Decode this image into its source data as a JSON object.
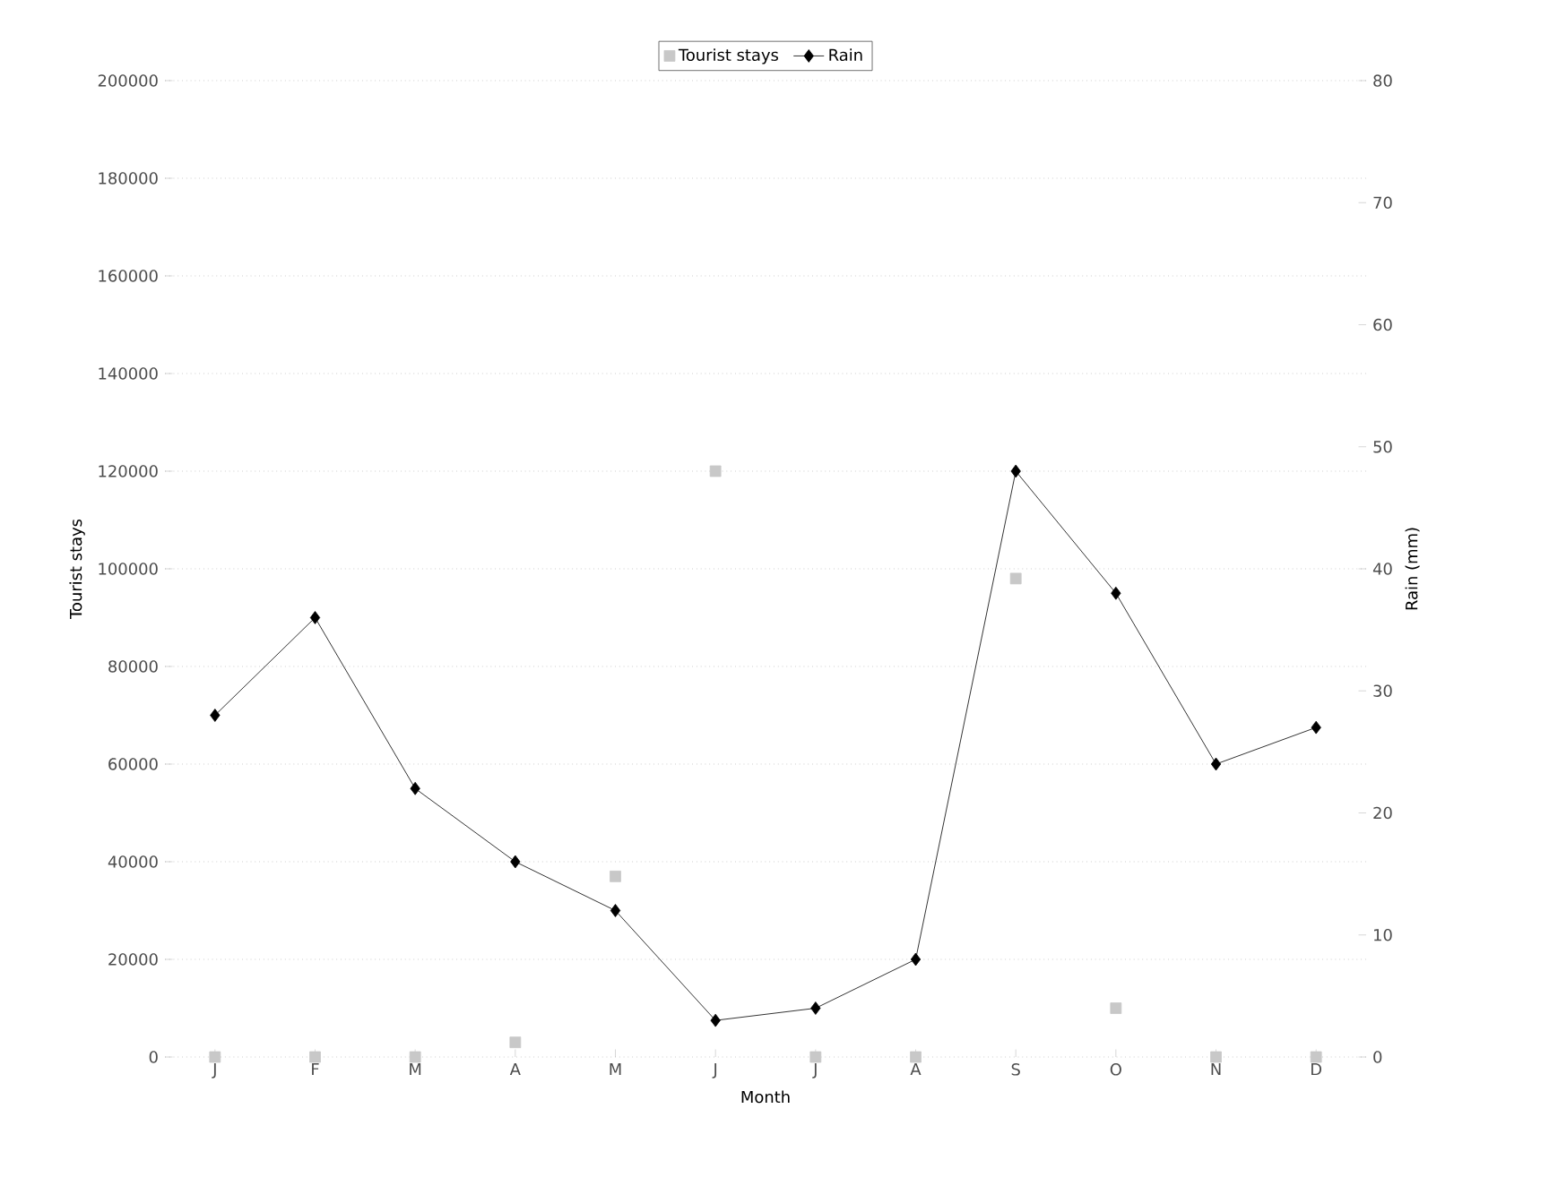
{
  "chart_data": {
    "type": "line",
    "xlabel": "Month",
    "ylabel": "Tourist stays",
    "y2label": "Rain (mm)",
    "categories": [
      "J",
      "F",
      "M",
      "A",
      "M",
      "J",
      "J",
      "A",
      "S",
      "O",
      "N",
      "D"
    ],
    "series": [
      {
        "name": "Tourist stays",
        "type": "scatter",
        "marker": "square",
        "color": "#c8c8c8",
        "values": [
          0,
          0,
          0,
          3000,
          37000,
          120000,
          0,
          0,
          98000,
          10000,
          0,
          0
        ]
      },
      {
        "name": "Rain",
        "axis": "y2",
        "marker": "diamond",
        "color": "#000000",
        "values": [
          28,
          36,
          22,
          16,
          12,
          3,
          4,
          8,
          48,
          38,
          24,
          27
        ]
      }
    ],
    "ylim": [
      0,
      200000
    ],
    "yticks": [
      0,
      20000,
      40000,
      60000,
      80000,
      100000,
      120000,
      140000,
      160000,
      180000,
      200000
    ],
    "y2lim": [
      0,
      80
    ],
    "y2ticks": [
      0,
      10,
      20,
      30,
      40,
      50,
      60,
      70,
      80
    ],
    "grid": "y",
    "legend": "top"
  }
}
